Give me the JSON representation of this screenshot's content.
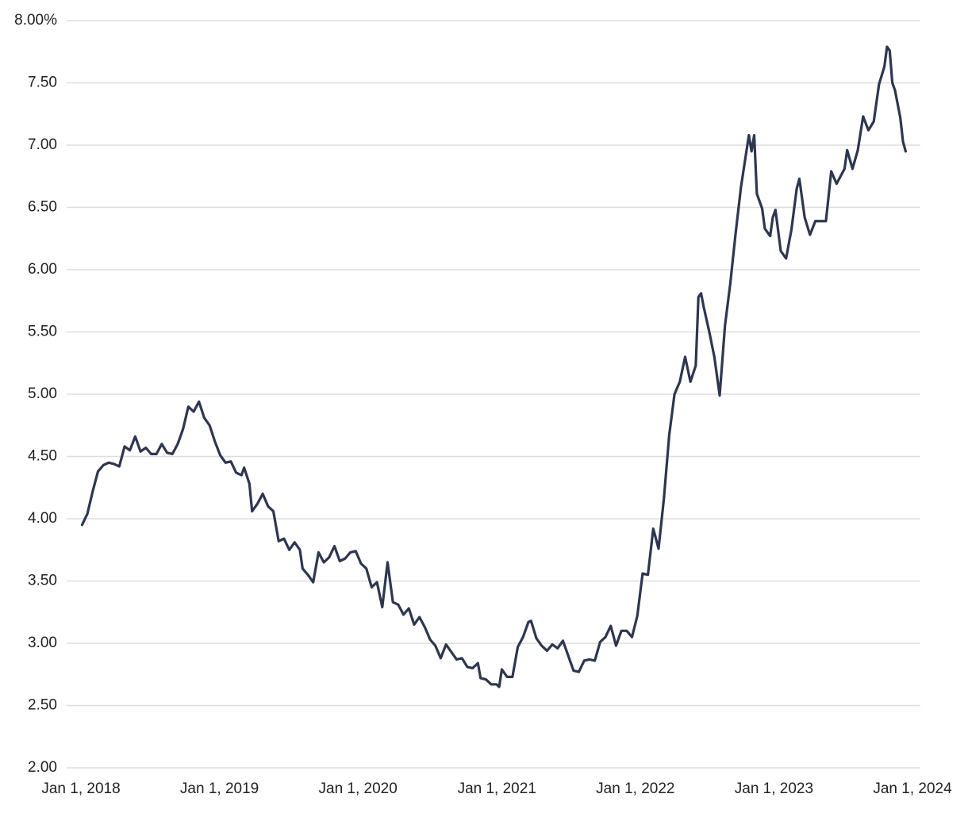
{
  "chart_data": {
    "type": "line",
    "color": "#2e3650",
    "grid": true,
    "xlim": [
      "2018-01-01",
      "2024-01-01"
    ],
    "xticks": [
      {
        "value": "2018-01-01",
        "label": "Jan 1, 2018"
      },
      {
        "value": "2019-01-01",
        "label": "Jan 1, 2019"
      },
      {
        "value": "2020-01-01",
        "label": "Jan 1, 2020"
      },
      {
        "value": "2021-01-01",
        "label": "Jan 1, 2021"
      },
      {
        "value": "2022-01-01",
        "label": "Jan 1, 2022"
      },
      {
        "value": "2023-01-01",
        "label": "Jan 1, 2023"
      },
      {
        "value": "2024-01-01",
        "label": "Jan 1, 2024"
      }
    ],
    "ylim": [
      2,
      8
    ],
    "yticks": [
      {
        "value": 2,
        "label": "2.00"
      },
      {
        "value": 2.5,
        "label": "2.50"
      },
      {
        "value": 3,
        "label": "3.00"
      },
      {
        "value": 3.5,
        "label": "3.50"
      },
      {
        "value": 4,
        "label": "4.00"
      },
      {
        "value": 4.5,
        "label": "4.50"
      },
      {
        "value": 5,
        "label": "5.00"
      },
      {
        "value": 5.5,
        "label": "5.50"
      },
      {
        "value": 6,
        "label": "6.00"
      },
      {
        "value": 6.5,
        "label": "6.50"
      },
      {
        "value": 7,
        "label": "7.00"
      },
      {
        "value": 7.5,
        "label": "7.50"
      },
      {
        "value": 8,
        "label": "8.00%"
      }
    ],
    "x": [
      "2018-01-04",
      "2018-01-18",
      "2018-02-01",
      "2018-02-15",
      "2018-03-01",
      "2018-03-15",
      "2018-03-29",
      "2018-04-12",
      "2018-04-26",
      "2018-05-10",
      "2018-05-24",
      "2018-06-07",
      "2018-06-21",
      "2018-07-05",
      "2018-07-19",
      "2018-08-02",
      "2018-08-16",
      "2018-08-30",
      "2018-09-13",
      "2018-09-27",
      "2018-10-11",
      "2018-10-25",
      "2018-11-08",
      "2018-11-22",
      "2018-12-06",
      "2018-12-20",
      "2019-01-03",
      "2019-01-17",
      "2019-01-31",
      "2019-02-14",
      "2019-02-28",
      "2019-03-07",
      "2019-03-21",
      "2019-03-28",
      "2019-04-11",
      "2019-04-25",
      "2019-05-09",
      "2019-05-23",
      "2019-06-06",
      "2019-06-20",
      "2019-07-04",
      "2019-07-18",
      "2019-08-01",
      "2019-08-08",
      "2019-08-22",
      "2019-09-05",
      "2019-09-19",
      "2019-10-03",
      "2019-10-17",
      "2019-10-31",
      "2019-11-14",
      "2019-11-28",
      "2019-12-12",
      "2019-12-26",
      "2020-01-09",
      "2020-01-23",
      "2020-02-06",
      "2020-02-20",
      "2020-03-05",
      "2020-03-19",
      "2020-04-02",
      "2020-04-16",
      "2020-04-30",
      "2020-05-14",
      "2020-05-28",
      "2020-06-11",
      "2020-06-25",
      "2020-07-09",
      "2020-07-23",
      "2020-08-06",
      "2020-08-20",
      "2020-09-03",
      "2020-09-17",
      "2020-10-01",
      "2020-10-15",
      "2020-10-29",
      "2020-11-12",
      "2020-11-19",
      "2020-12-03",
      "2020-12-17",
      "2020-12-31",
      "2021-01-07",
      "2021-01-14",
      "2021-01-28",
      "2021-02-11",
      "2021-02-25",
      "2021-03-11",
      "2021-03-25",
      "2021-04-01",
      "2021-04-15",
      "2021-04-29",
      "2021-05-13",
      "2021-05-27",
      "2021-06-10",
      "2021-06-24",
      "2021-07-08",
      "2021-07-22",
      "2021-08-05",
      "2021-08-19",
      "2021-09-02",
      "2021-09-16",
      "2021-09-30",
      "2021-10-14",
      "2021-10-28",
      "2021-11-11",
      "2021-11-25",
      "2021-12-09",
      "2021-12-23",
      "2022-01-06",
      "2022-01-20",
      "2022-02-03",
      "2022-02-17",
      "2022-03-03",
      "2022-03-17",
      "2022-03-31",
      "2022-04-14",
      "2022-04-28",
      "2022-05-12",
      "2022-05-26",
      "2022-06-09",
      "2022-06-16",
      "2022-06-23",
      "2022-06-30",
      "2022-07-14",
      "2022-07-28",
      "2022-08-11",
      "2022-08-25",
      "2022-09-08",
      "2022-09-22",
      "2022-10-06",
      "2022-10-20",
      "2022-10-27",
      "2022-11-03",
      "2022-11-10",
      "2022-11-17",
      "2022-12-01",
      "2022-12-08",
      "2022-12-22",
      "2022-12-29",
      "2023-01-05",
      "2023-01-19",
      "2023-02-02",
      "2023-02-16",
      "2023-03-02",
      "2023-03-09",
      "2023-03-23",
      "2023-04-06",
      "2023-04-20",
      "2023-05-04",
      "2023-05-18",
      "2023-06-01",
      "2023-06-15",
      "2023-07-06",
      "2023-07-13",
      "2023-07-27",
      "2023-08-10",
      "2023-08-24",
      "2023-09-07",
      "2023-09-21",
      "2023-10-05",
      "2023-10-19",
      "2023-10-26",
      "2023-11-02",
      "2023-11-09",
      "2023-11-16",
      "2023-11-30",
      "2023-12-07",
      "2023-12-14"
    ],
    "values": [
      3.95,
      4.04,
      4.22,
      4.38,
      4.43,
      4.45,
      4.44,
      4.42,
      4.58,
      4.55,
      4.66,
      4.54,
      4.57,
      4.52,
      4.52,
      4.6,
      4.53,
      4.52,
      4.6,
      4.72,
      4.9,
      4.86,
      4.94,
      4.81,
      4.75,
      4.62,
      4.51,
      4.45,
      4.46,
      4.37,
      4.35,
      4.41,
      4.28,
      4.06,
      4.12,
      4.2,
      4.1,
      4.06,
      3.82,
      3.84,
      3.75,
      3.81,
      3.75,
      3.6,
      3.55,
      3.49,
      3.73,
      3.65,
      3.69,
      3.78,
      3.66,
      3.68,
      3.73,
      3.74,
      3.64,
      3.6,
      3.45,
      3.49,
      3.29,
      3.65,
      3.33,
      3.31,
      3.23,
      3.28,
      3.15,
      3.21,
      3.13,
      3.03,
      2.98,
      2.88,
      2.99,
      2.93,
      2.87,
      2.88,
      2.81,
      2.8,
      2.84,
      2.72,
      2.71,
      2.67,
      2.67,
      2.65,
      2.79,
      2.73,
      2.73,
      2.97,
      3.05,
      3.17,
      3.18,
      3.04,
      2.98,
      2.94,
      2.99,
      2.96,
      3.02,
      2.9,
      2.78,
      2.77,
      2.86,
      2.87,
      2.86,
      3.01,
      3.05,
      3.14,
      2.98,
      3.1,
      3.1,
      3.05,
      3.22,
      3.56,
      3.55,
      3.92,
      3.76,
      4.16,
      4.67,
      5.0,
      5.1,
      5.3,
      5.1,
      5.23,
      5.78,
      5.81,
      5.7,
      5.51,
      5.3,
      4.99,
      5.55,
      5.89,
      6.29,
      6.66,
      6.94,
      7.08,
      6.95,
      7.08,
      6.61,
      6.49,
      6.33,
      6.27,
      6.42,
      6.48,
      6.15,
      6.09,
      6.32,
      6.65,
      6.73,
      6.42,
      6.28,
      6.39,
      6.39,
      6.39,
      6.79,
      6.69,
      6.81,
      6.96,
      6.81,
      6.96,
      7.23,
      7.12,
      7.19,
      7.49,
      7.63,
      7.79,
      7.76,
      7.5,
      7.44,
      7.22,
      7.03,
      6.95
    ]
  }
}
